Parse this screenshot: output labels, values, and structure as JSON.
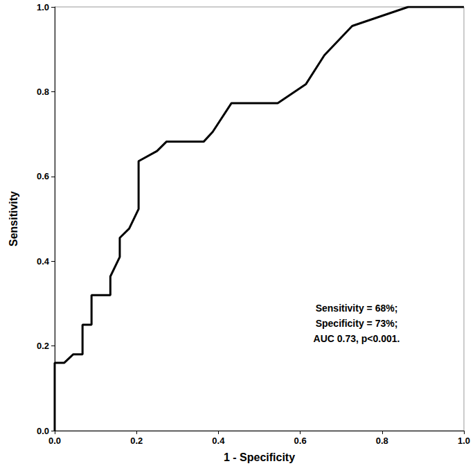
{
  "chart_data": {
    "type": "line",
    "x_label": "1 - Specificity",
    "y_label": "Sensitivity",
    "annotation": [
      "Sensitivity = 68%;",
      "Specificity = 73%;",
      "AUC 0.73, p<0.001."
    ],
    "x": [
      0,
      0,
      0.023,
      0.045,
      0.068,
      0.068,
      0.09,
      0.09,
      0.136,
      0.136,
      0.159,
      0.159,
      0.182,
      0.205,
      0.205,
      0.25,
      0.273,
      0.364,
      0.386,
      0.432,
      0.545,
      0.614,
      0.659,
      0.727,
      0.864,
      1.0
    ],
    "values": [
      0,
      0.16,
      0.16,
      0.18,
      0.18,
      0.25,
      0.25,
      0.32,
      0.32,
      0.364,
      0.41,
      0.455,
      0.477,
      0.523,
      0.636,
      0.66,
      0.682,
      0.682,
      0.705,
      0.773,
      0.773,
      0.818,
      0.886,
      0.955,
      1.0,
      1.0
    ],
    "color": "#000000",
    "xlim": [
      0,
      1
    ],
    "ylim": [
      0,
      1
    ],
    "xticks": [
      {
        "value": 0,
        "label": "0.0"
      },
      0.2,
      0.4,
      0.6,
      0.8,
      {
        "value": 1,
        "label": "1.0"
      }
    ],
    "yticks": [
      {
        "value": 0,
        "label": "0.0"
      },
      0.2,
      0.4,
      0.6,
      0.8,
      {
        "value": 1,
        "label": "1.0"
      }
    ],
    "grid": false
  }
}
